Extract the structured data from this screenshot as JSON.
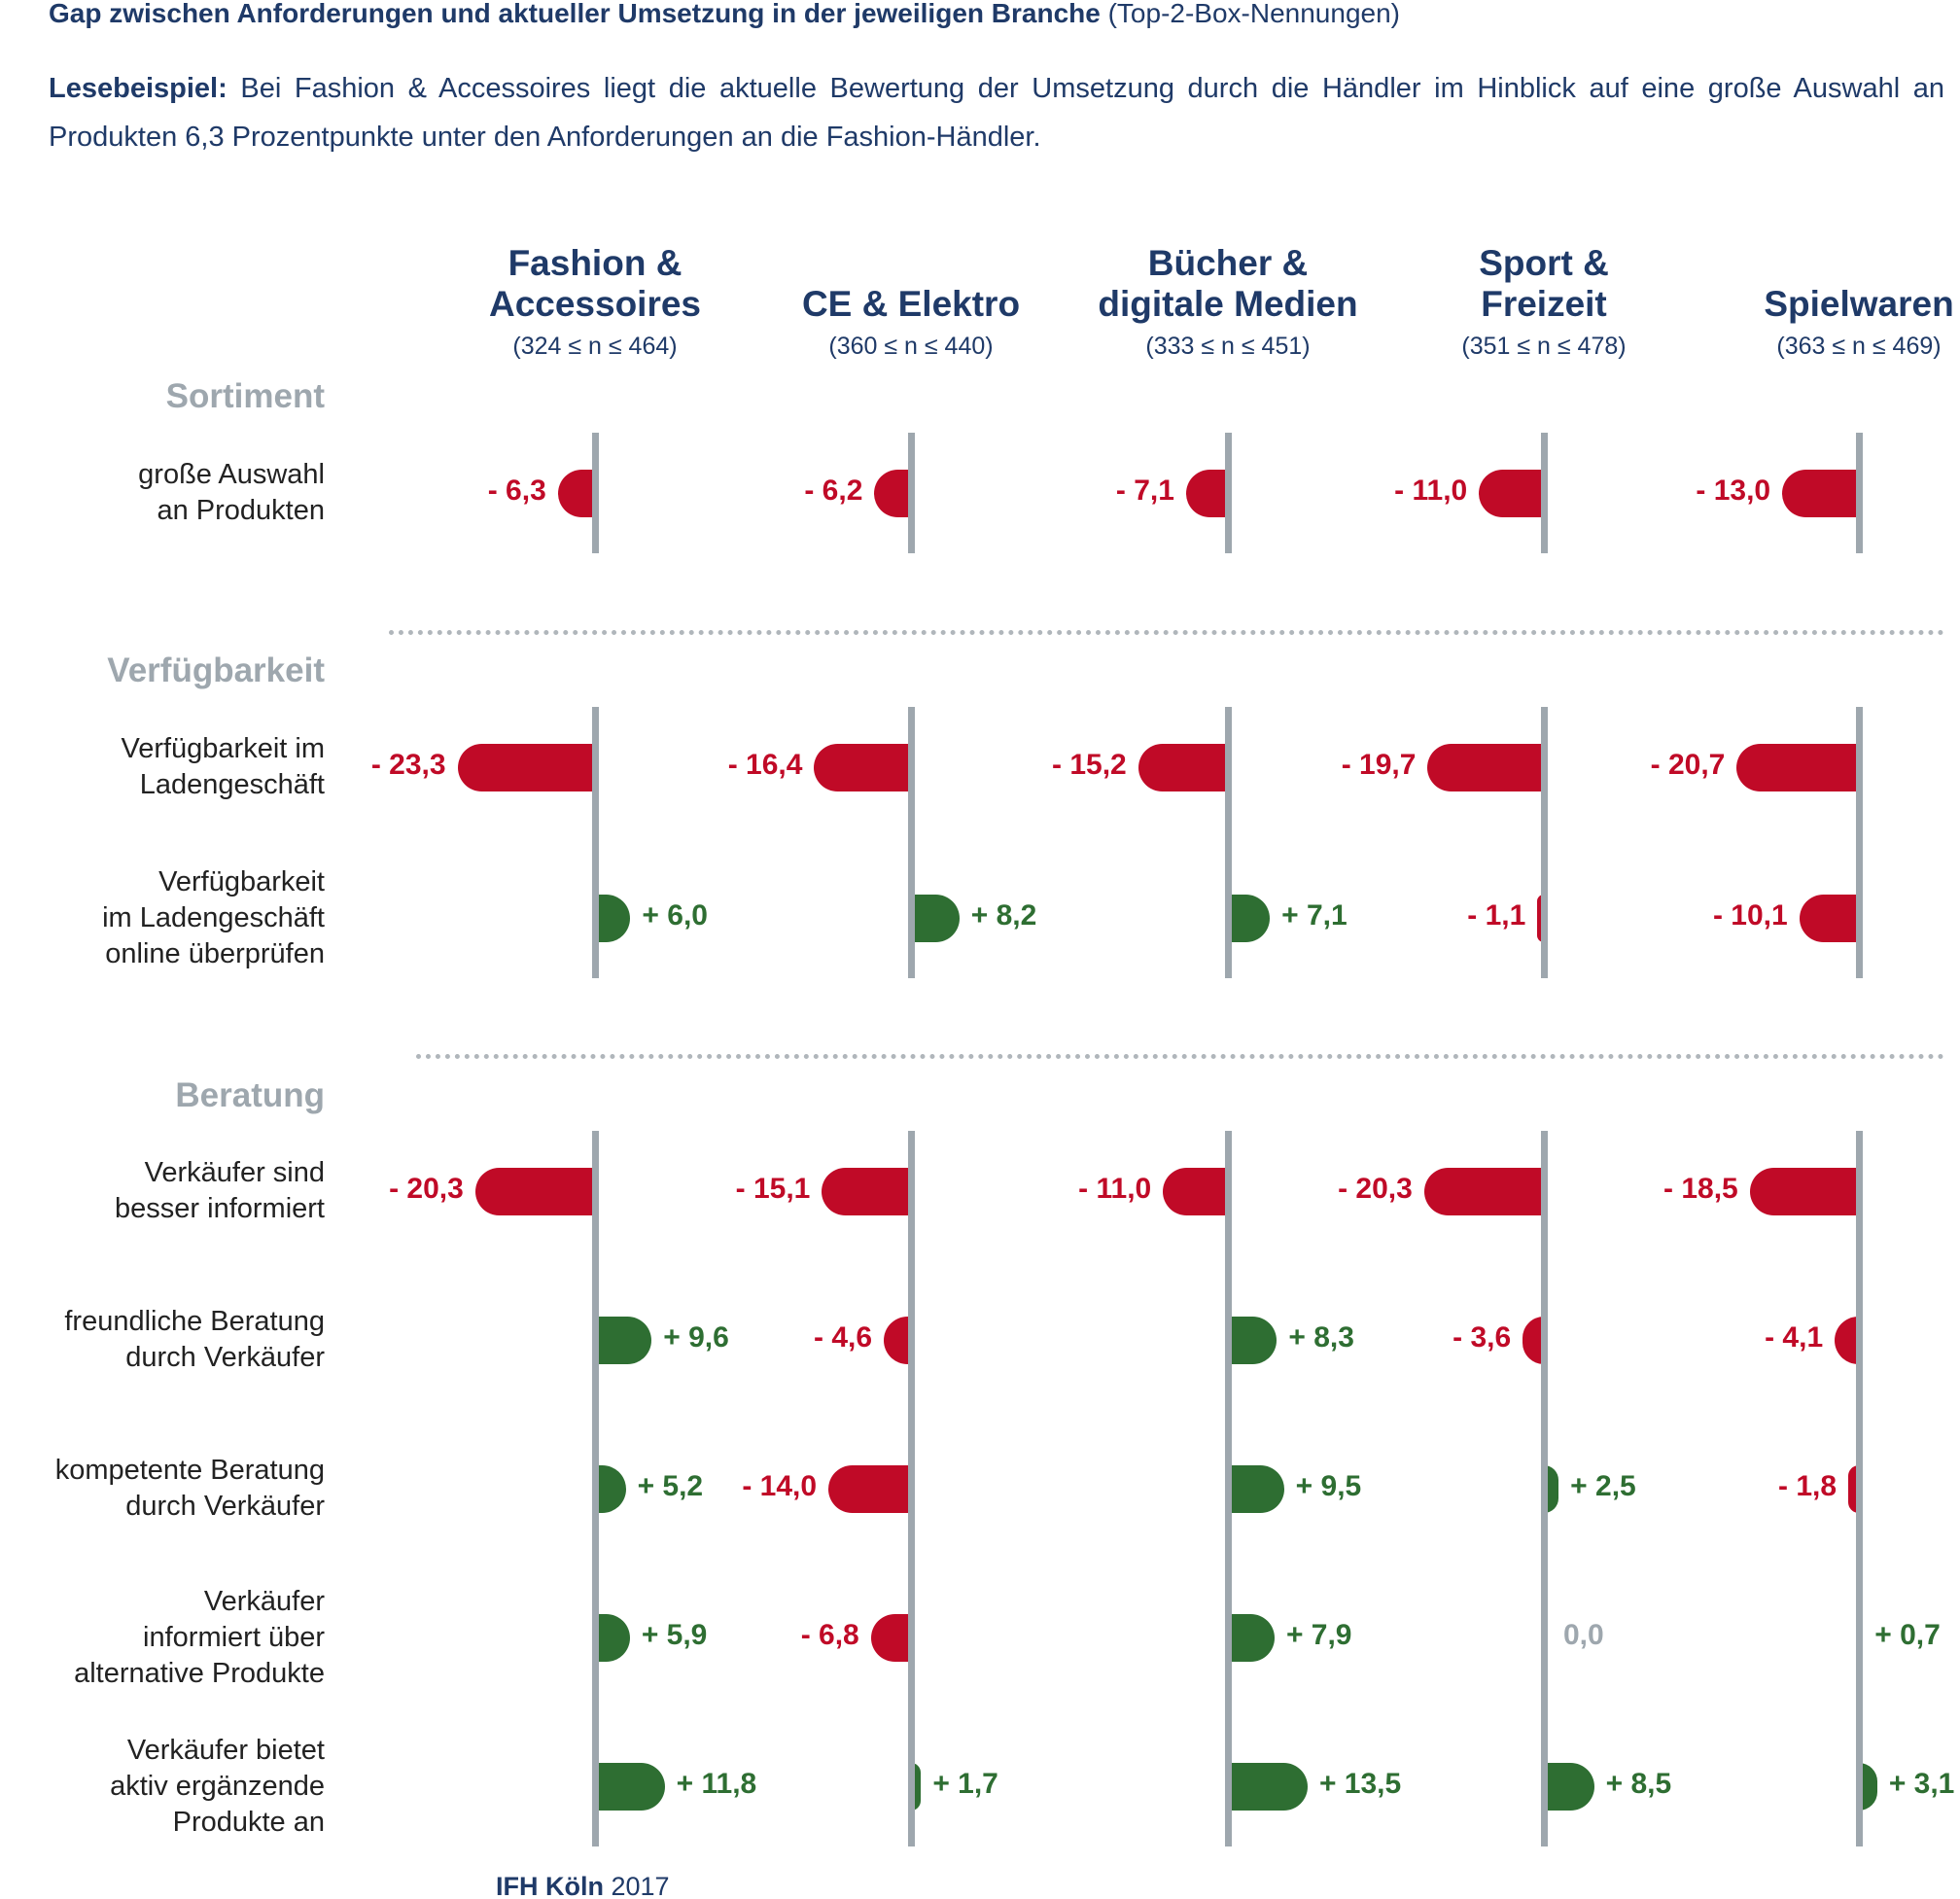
{
  "title": {
    "bold": "Gap zwischen Anforderungen und aktueller Umsetzung in der jeweiligen Branche",
    "normal": "(Top-2-Box-Nennungen)"
  },
  "intro": {
    "bold": "Lesebeispiel:",
    "text": "Bei Fashion & Accessoires liegt die aktuelle Bewertung der Umsetzung durch die Händler im Hinblick auf eine große Auswahl an Produkten 6,3 Prozentpunkte unter den Anforderungen an die Fashion-Händler."
  },
  "footer": {
    "bold": "IFH Köln",
    "year": "2017"
  },
  "colors": {
    "negative": "#c00a27",
    "positive": "#2e6e32",
    "zero": "#9ea7ae",
    "axis": "#9ea7ae",
    "text": "#1f3a68"
  },
  "chart_data": {
    "type": "bar",
    "orientation": "horizontal-diverging",
    "categories": [
      {
        "l1": "Fashion &",
        "l2": "Accessoires",
        "n": "(324 ≤ n ≤ 464)"
      },
      {
        "l1": "",
        "l2": "CE & Elektro",
        "n": "(360 ≤ n ≤ 440)"
      },
      {
        "l1": "Bücher &",
        "l2": "digitale Medien",
        "n": "(333 ≤ n ≤ 451)"
      },
      {
        "l1": "Sport &",
        "l2": "Freizeit",
        "n": "(351 ≤ n ≤ 478)"
      },
      {
        "l1": "",
        "l2": "Spielwaren",
        "n": "(363 ≤ n ≤ 469)"
      }
    ],
    "sections": [
      {
        "name": "Sortiment",
        "rows": [
          {
            "label": [
              "große Auswahl",
              "an Produkten"
            ],
            "values": [
              -6.3,
              -6.2,
              -7.1,
              -11.0,
              -13.0
            ],
            "labels": [
              "- 6,3",
              "- 6,2",
              "- 7,1",
              "- 11,0",
              "- 13,0"
            ]
          }
        ]
      },
      {
        "name": "Verfügbarkeit",
        "rows": [
          {
            "label": [
              "Verfügbarkeit im",
              "Ladengeschäft"
            ],
            "values": [
              -23.3,
              -16.4,
              -15.2,
              -19.7,
              -20.7
            ],
            "labels": [
              "- 23,3",
              "- 16,4",
              "- 15,2",
              "- 19,7",
              "- 20,7"
            ]
          },
          {
            "label": [
              "Verfügbarkeit",
              "im Ladengeschäft",
              "online überprüfen"
            ],
            "values": [
              6.0,
              8.2,
              7.1,
              -1.1,
              -10.1
            ],
            "labels": [
              "+ 6,0",
              "+ 8,2",
              "+ 7,1",
              "- 1,1",
              "- 10,1"
            ]
          }
        ]
      },
      {
        "name": "Beratung",
        "rows": [
          {
            "label": [
              "Verkäufer sind",
              "besser informiert"
            ],
            "values": [
              -20.3,
              -15.1,
              -11.0,
              -20.3,
              -18.5
            ],
            "labels": [
              "- 20,3",
              "- 15,1",
              "- 11,0",
              "- 20,3",
              "- 18,5"
            ]
          },
          {
            "label": [
              "freundliche Beratung",
              "durch Verkäufer"
            ],
            "values": [
              9.6,
              -4.6,
              8.3,
              -3.6,
              -4.1
            ],
            "labels": [
              "+ 9,6",
              "- 4,6",
              "+ 8,3",
              "- 3,6",
              "- 4,1"
            ]
          },
          {
            "label": [
              "kompetente Beratung",
              "durch Verkäufer"
            ],
            "values": [
              5.2,
              -14.0,
              9.5,
              2.5,
              -1.8
            ],
            "labels": [
              "+ 5,2",
              "- 14,0",
              "+ 9,5",
              "+ 2,5",
              "- 1,8"
            ]
          },
          {
            "label": [
              "Verkäufer",
              "informiert über",
              "alternative Produkte"
            ],
            "values": [
              5.9,
              -6.8,
              7.9,
              0.0,
              0.7
            ],
            "labels": [
              "+ 5,9",
              "- 6,8",
              "+ 7,9",
              "0,0",
              "+ 0,7"
            ]
          },
          {
            "label": [
              "Verkäufer bietet",
              "aktiv ergänzende",
              "Produkte an"
            ],
            "values": [
              11.8,
              1.7,
              13.5,
              8.5,
              3.1
            ],
            "labels": [
              "+ 11,8",
              "+ 1,7",
              "+ 13,5",
              "+ 8,5",
              "+ 3,1"
            ]
          }
        ]
      }
    ]
  }
}
